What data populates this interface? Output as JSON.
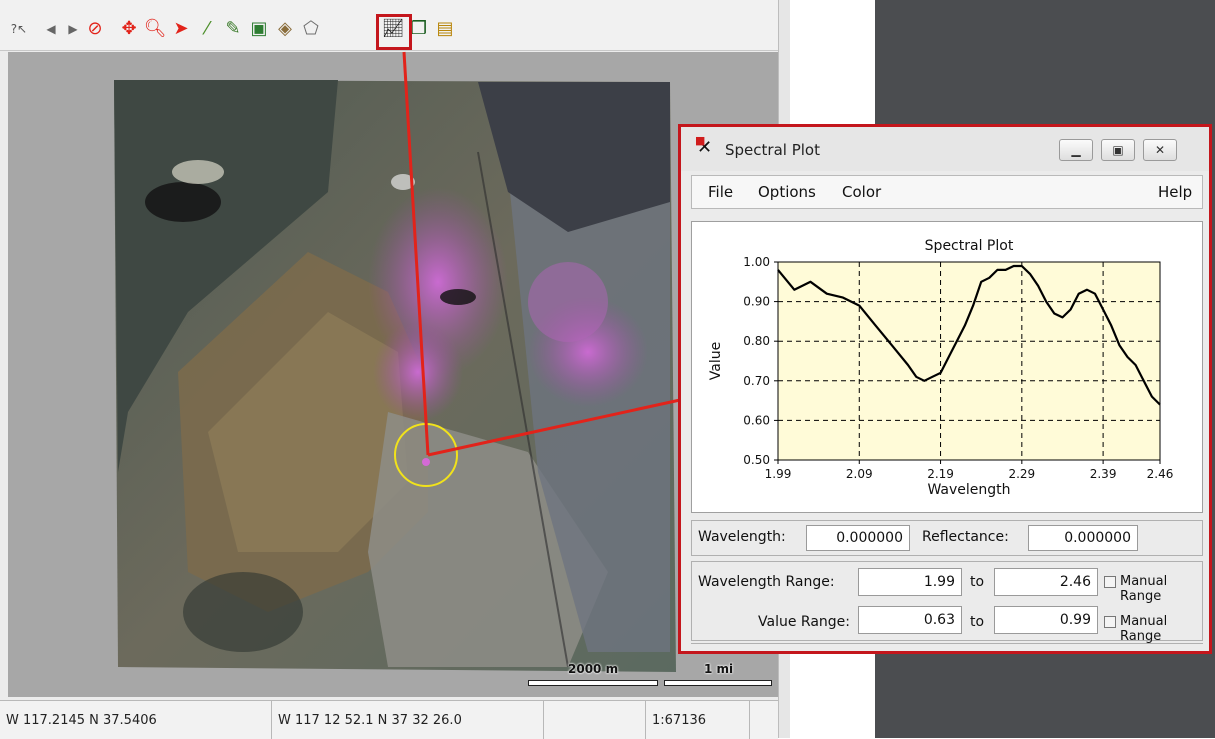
{
  "toolbar": {
    "tools": [
      {
        "icon": "help-pointer-icon",
        "glyph": "?↖",
        "color": "#555555"
      },
      {
        "icon": "back-arrow-icon",
        "glyph": "◀",
        "color": "#666666"
      },
      {
        "icon": "forward-arrow-icon",
        "glyph": "▶",
        "color": "#666666"
      },
      {
        "icon": "cancel-icon",
        "glyph": "⊘",
        "color": "#e2231a"
      },
      {
        "icon": "pan-icon",
        "glyph": "✥",
        "color": "#e2231a"
      },
      {
        "icon": "zoom-icon",
        "glyph": "🔍︎",
        "color": "#e2231a"
      },
      {
        "icon": "select-pointer-icon",
        "glyph": "➤",
        "color": "#e2231a"
      },
      {
        "icon": "draw-line-icon",
        "glyph": "⁄",
        "color": "#4c8f2a"
      },
      {
        "icon": "edit-icon",
        "glyph": "✎",
        "color": "#3a7a2a"
      },
      {
        "icon": "layer-icon",
        "glyph": "▣",
        "color": "#2e7d32"
      },
      {
        "icon": "region-icon",
        "glyph": "◈",
        "color": "#8a6d3b"
      },
      {
        "icon": "polygon-icon",
        "glyph": "⬠",
        "color": "#6d6d6d"
      },
      {
        "icon": "spectral-plot-icon",
        "glyph": "📈︎",
        "color": "#1a1a1a"
      },
      {
        "icon": "cube-icon",
        "glyph": "❒",
        "color": "#1b5e20"
      },
      {
        "icon": "data-icon",
        "glyph": "▤",
        "color": "#b8860b"
      }
    ],
    "highlight_color": "#c4161c"
  },
  "scalebar": {
    "metric_label": "2000 m",
    "imperial_label": "1 mi"
  },
  "status": {
    "decimal_coords": "W 117.2145  N 37.5406",
    "dms_coords": "W 117 12 52.1  N 37 32 26.0",
    "empty": "",
    "scale": "1:67136"
  },
  "spectral_window": {
    "title": "Spectral Plot",
    "menu": {
      "file": "File",
      "options": "Options",
      "color": "Color",
      "help": "Help"
    },
    "readout": {
      "wavelength_label": "Wavelength:",
      "wavelength_value": "0.000000",
      "reflectance_label": "Reflectance:",
      "reflectance_value": "0.000000"
    },
    "ranges": {
      "wavelength_range_label": "Wavelength Range:",
      "wavelength_min": "1.99",
      "wavelength_max": "2.46",
      "value_range_label": "Value Range:",
      "value_min": "0.63",
      "value_max": "0.99",
      "to_label": "to",
      "manual_range_label": "Manual Range"
    },
    "border_color": "#c4161c"
  },
  "chart_data": {
    "type": "line",
    "title": "Spectral Plot",
    "xlabel": "Wavelength",
    "ylabel": "Value",
    "xlim": [
      1.99,
      2.46
    ],
    "ylim": [
      0.5,
      1.0
    ],
    "xticks": [
      "1.99",
      "2.09",
      "2.19",
      "2.29",
      "2.39",
      "2.46"
    ],
    "yticks": [
      "1.00",
      "0.90",
      "0.80",
      "0.70",
      "0.60",
      "0.50"
    ],
    "xtick_values": [
      1.99,
      2.09,
      2.19,
      2.29,
      2.39,
      2.46
    ],
    "ytick_values": [
      1.0,
      0.9,
      0.8,
      0.7,
      0.6,
      0.5
    ],
    "grid": true,
    "background": "#fffbd8",
    "series": [
      {
        "color": "#000000",
        "x": [
          1.99,
          2.01,
          2.03,
          2.05,
          2.07,
          2.09,
          2.11,
          2.13,
          2.15,
          2.16,
          2.17,
          2.18,
          2.19,
          2.2,
          2.21,
          2.22,
          2.23,
          2.24,
          2.25,
          2.26,
          2.27,
          2.28,
          2.29,
          2.3,
          2.31,
          2.32,
          2.33,
          2.34,
          2.35,
          2.36,
          2.37,
          2.38,
          2.39,
          2.4,
          2.41,
          2.42,
          2.43,
          2.44,
          2.45,
          2.46
        ],
        "y": [
          0.98,
          0.93,
          0.95,
          0.92,
          0.91,
          0.89,
          0.84,
          0.79,
          0.74,
          0.71,
          0.7,
          0.71,
          0.72,
          0.76,
          0.8,
          0.84,
          0.89,
          0.95,
          0.96,
          0.98,
          0.98,
          0.99,
          0.99,
          0.97,
          0.94,
          0.9,
          0.87,
          0.86,
          0.88,
          0.92,
          0.93,
          0.92,
          0.88,
          0.84,
          0.79,
          0.76,
          0.74,
          0.7,
          0.66,
          0.64
        ]
      }
    ]
  }
}
